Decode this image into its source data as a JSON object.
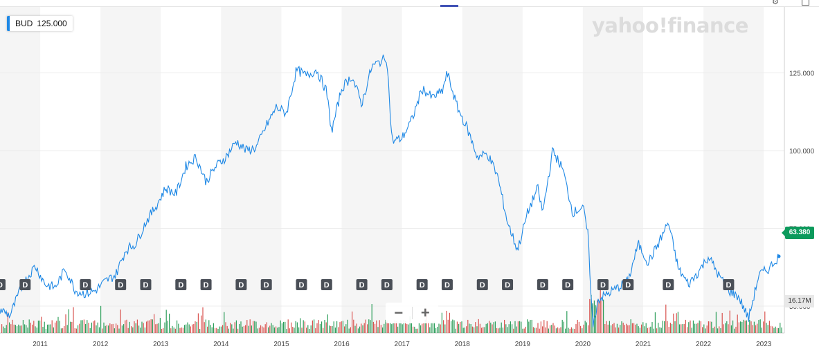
{
  "header": {
    "brand": "yahoo!finance",
    "ticker": "BUD",
    "ticker_value": "125.000"
  },
  "colors": {
    "line": "#1e88e5",
    "band": "#f5f5f5",
    "marker": "#4a4f57",
    "vol_up": "#2e9e5b",
    "vol_down": "#d9534f",
    "price_tag": "#0c9a5c"
  },
  "controls": {
    "zoom_out": "−",
    "zoom_in": "+"
  },
  "chart_data": {
    "type": "line",
    "x_start": "2010-05",
    "x_end": "2023-04",
    "xlim": [
      "2010-05",
      "2023-04"
    ],
    "ylim": [
      40,
      140
    ],
    "y_ticks": [
      50,
      75,
      100,
      125
    ],
    "y_tick_labels": [
      "50.000",
      "75.000",
      "100.000",
      "125.000"
    ],
    "x_tick_labels": [
      "2011",
      "2012",
      "2013",
      "2014",
      "2015",
      "2016",
      "2017",
      "2018",
      "2019",
      "2020",
      "2021",
      "2022",
      "2023"
    ],
    "last_price": "63.380",
    "volume_label": "16.17M",
    "dividend_marker_label": "D",
    "dividend_dates": [
      "2010-05",
      "2010-10",
      "2011-10",
      "2012-05",
      "2012-10",
      "2013-05",
      "2013-10",
      "2014-05",
      "2014-10",
      "2015-05",
      "2015-10",
      "2016-05",
      "2016-10",
      "2017-05",
      "2017-10",
      "2018-05",
      "2018-10",
      "2019-05",
      "2019-10",
      "2020-05",
      "2020-10",
      "2021-06",
      "2022-06"
    ],
    "series": [
      {
        "values": [
          [
            "2010-05",
            49
          ],
          [
            "2010-07",
            47
          ],
          [
            "2010-09",
            55
          ],
          [
            "2010-10",
            58
          ],
          [
            "2010-12",
            63
          ],
          [
            "2011-02",
            57
          ],
          [
            "2011-04",
            56
          ],
          [
            "2011-06",
            62
          ],
          [
            "2011-08",
            55
          ],
          [
            "2011-10",
            54
          ],
          [
            "2011-12",
            55
          ],
          [
            "2012-02",
            58
          ],
          [
            "2012-04",
            60
          ],
          [
            "2012-06",
            68
          ],
          [
            "2012-08",
            70
          ],
          [
            "2012-10",
            77
          ],
          [
            "2012-12",
            82
          ],
          [
            "2013-02",
            88
          ],
          [
            "2013-04",
            86
          ],
          [
            "2013-06",
            95
          ],
          [
            "2013-08",
            98
          ],
          [
            "2013-10",
            90
          ],
          [
            "2013-12",
            95
          ],
          [
            "2014-02",
            98
          ],
          [
            "2014-04",
            103
          ],
          [
            "2014-06",
            100
          ],
          [
            "2014-08",
            101
          ],
          [
            "2014-10",
            108
          ],
          [
            "2014-12",
            114
          ],
          [
            "2015-02",
            112
          ],
          [
            "2015-04",
            126
          ],
          [
            "2015-06",
            124
          ],
          [
            "2015-08",
            126
          ],
          [
            "2015-10",
            119
          ],
          [
            "2015-11",
            106
          ],
          [
            "2016-01",
            120
          ],
          [
            "2016-03",
            124
          ],
          [
            "2016-05",
            115
          ],
          [
            "2016-07",
            127
          ],
          [
            "2016-09",
            129
          ],
          [
            "2016-10",
            130
          ],
          [
            "2016-11",
            103
          ],
          [
            "2017-01",
            104
          ],
          [
            "2017-03",
            110
          ],
          [
            "2017-05",
            120
          ],
          [
            "2017-07",
            117
          ],
          [
            "2017-09",
            119
          ],
          [
            "2017-10",
            125
          ],
          [
            "2017-12",
            114
          ],
          [
            "2018-02",
            107
          ],
          [
            "2018-04",
            98
          ],
          [
            "2018-06",
            99
          ],
          [
            "2018-08",
            92
          ],
          [
            "2018-10",
            77
          ],
          [
            "2018-12",
            68
          ],
          [
            "2019-02",
            80
          ],
          [
            "2019-04",
            88
          ],
          [
            "2019-05",
            80
          ],
          [
            "2019-07",
            100
          ],
          [
            "2019-09",
            94
          ],
          [
            "2019-11",
            80
          ],
          [
            "2020-01",
            82
          ],
          [
            "2020-02",
            73
          ],
          [
            "2020-03",
            43
          ],
          [
            "2020-04",
            52
          ],
          [
            "2020-06",
            54
          ],
          [
            "2020-08",
            56
          ],
          [
            "2020-10",
            58
          ],
          [
            "2020-12",
            70
          ],
          [
            "2021-02",
            64
          ],
          [
            "2021-04",
            70
          ],
          [
            "2021-06",
            77
          ],
          [
            "2021-08",
            62
          ],
          [
            "2021-10",
            57
          ],
          [
            "2021-12",
            61
          ],
          [
            "2022-02",
            66
          ],
          [
            "2022-04",
            60
          ],
          [
            "2022-06",
            55
          ],
          [
            "2022-08",
            53
          ],
          [
            "2022-10",
            46
          ],
          [
            "2022-12",
            60
          ],
          [
            "2023-02",
            62
          ],
          [
            "2023-04",
            66
          ]
        ]
      }
    ]
  }
}
